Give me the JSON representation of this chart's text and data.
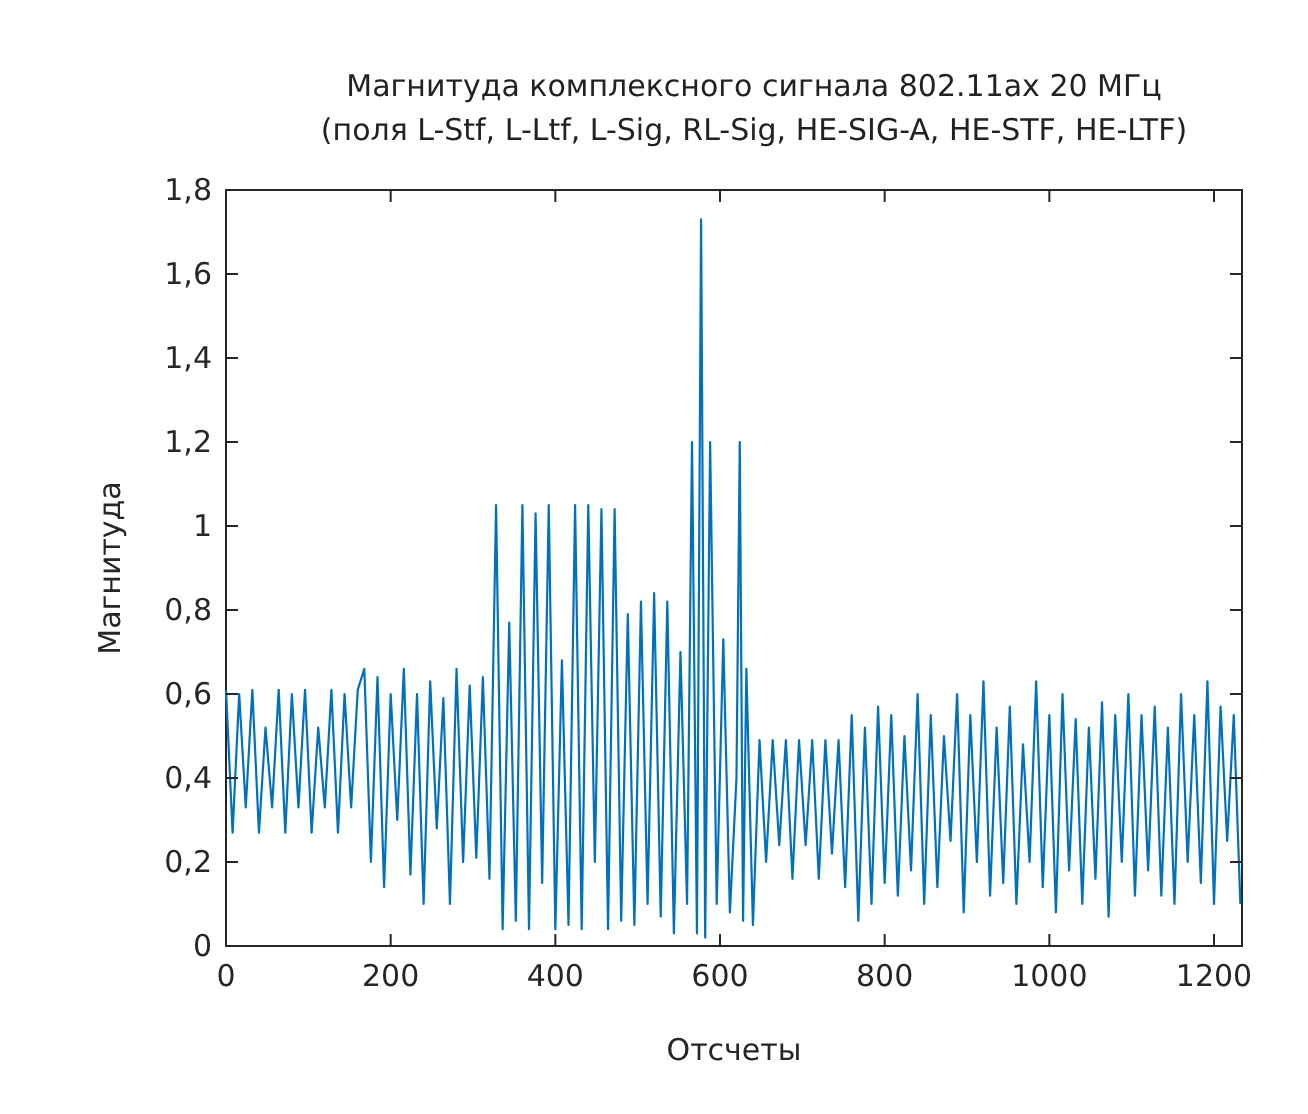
{
  "chart_data": {
    "type": "line",
    "title": "Магнитуда комплексного сигнала 802.11ax 20 МГц\n(поля L-Stf, L-Ltf, L-Sig, RL-Sig, HE-SIG-A, HE-STF, HE-LTF)",
    "xlabel": "Отсчеты",
    "ylabel": "Магнитуда",
    "x": [
      0,
      8,
      16,
      24,
      32,
      40,
      48,
      56,
      64,
      72,
      80,
      88,
      96,
      104,
      112,
      120,
      128,
      136,
      144,
      152,
      160,
      168,
      176,
      184,
      192,
      200,
      208,
      216,
      224,
      232,
      240,
      248,
      256,
      264,
      272,
      280,
      288,
      296,
      304,
      312,
      320,
      328,
      336,
      344,
      352,
      360,
      368,
      376,
      384,
      392,
      400,
      408,
      416,
      424,
      432,
      440,
      448,
      456,
      464,
      472,
      480,
      488,
      496,
      504,
      512,
      520,
      528,
      536,
      544,
      552,
      560,
      566,
      572,
      577,
      582,
      588,
      596,
      604,
      612,
      620,
      624,
      628,
      632,
      640,
      648,
      656,
      664,
      672,
      680,
      688,
      696,
      704,
      712,
      720,
      728,
      736,
      744,
      752,
      760,
      768,
      776,
      784,
      792,
      800,
      808,
      816,
      824,
      832,
      840,
      848,
      856,
      864,
      872,
      880,
      888,
      896,
      904,
      912,
      920,
      928,
      936,
      944,
      952,
      960,
      968,
      976,
      984,
      992,
      1000,
      1008,
      1016,
      1024,
      1032,
      1040,
      1048,
      1056,
      1064,
      1072,
      1080,
      1088,
      1096,
      1104,
      1112,
      1120,
      1128,
      1136,
      1144,
      1152,
      1160,
      1168,
      1176,
      1184,
      1192,
      1200,
      1208,
      1216,
      1224,
      1232
    ],
    "series": [
      {
        "color": "#0072bd",
        "values": [
          0.61,
          0.27,
          0.6,
          0.33,
          0.61,
          0.27,
          0.52,
          0.33,
          0.61,
          0.27,
          0.6,
          0.33,
          0.61,
          0.27,
          0.52,
          0.33,
          0.61,
          0.27,
          0.6,
          0.33,
          0.61,
          0.66,
          0.2,
          0.64,
          0.14,
          0.6,
          0.3,
          0.66,
          0.17,
          0.6,
          0.1,
          0.63,
          0.28,
          0.59,
          0.1,
          0.66,
          0.2,
          0.62,
          0.21,
          0.64,
          0.16,
          1.05,
          0.04,
          0.77,
          0.06,
          1.05,
          0.04,
          1.03,
          0.15,
          1.05,
          0.04,
          0.68,
          0.05,
          1.05,
          0.04,
          1.05,
          0.2,
          1.04,
          0.04,
          1.04,
          0.06,
          0.79,
          0.05,
          0.82,
          0.1,
          0.84,
          0.07,
          0.82,
          0.03,
          0.7,
          0.1,
          1.2,
          0.03,
          1.73,
          0.02,
          1.2,
          0.1,
          0.73,
          0.08,
          0.4,
          1.2,
          0.06,
          0.66,
          0.05,
          0.49,
          0.2,
          0.49,
          0.24,
          0.49,
          0.16,
          0.49,
          0.24,
          0.49,
          0.16,
          0.49,
          0.22,
          0.49,
          0.14,
          0.55,
          0.06,
          0.52,
          0.1,
          0.57,
          0.15,
          0.55,
          0.12,
          0.5,
          0.18,
          0.6,
          0.1,
          0.55,
          0.14,
          0.5,
          0.25,
          0.6,
          0.08,
          0.55,
          0.2,
          0.63,
          0.12,
          0.52,
          0.15,
          0.57,
          0.1,
          0.48,
          0.2,
          0.63,
          0.14,
          0.55,
          0.08,
          0.6,
          0.18,
          0.54,
          0.1,
          0.52,
          0.16,
          0.58,
          0.07,
          0.55,
          0.2,
          0.6,
          0.12,
          0.55,
          0.18,
          0.57,
          0.12,
          0.52,
          0.1,
          0.6,
          0.2,
          0.55,
          0.15,
          0.63,
          0.1,
          0.57,
          0.25,
          0.55,
          0.1
        ]
      }
    ],
    "xlim": [
      0,
      1234
    ],
    "ylim": [
      0,
      1.8
    ],
    "xticks": [
      0,
      200,
      400,
      600,
      800,
      1000,
      1200
    ],
    "yticks": [
      0,
      {
        "value": 0.2,
        "label": "0,2"
      },
      {
        "value": 0.4,
        "label": "0,4"
      },
      {
        "value": 0.6,
        "label": "0,6"
      },
      {
        "value": 0.8,
        "label": "0,8"
      },
      1,
      {
        "value": 1.2,
        "label": "1,2"
      },
      {
        "value": 1.4,
        "label": "1,4"
      },
      {
        "value": 1.6,
        "label": "1,6"
      },
      {
        "value": 1.8,
        "label": "1,8"
      }
    ],
    "grid": false
  }
}
